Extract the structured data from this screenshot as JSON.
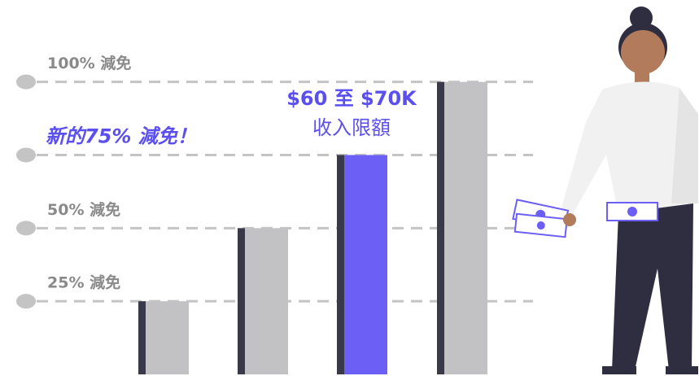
{
  "chart_data": {
    "type": "bar",
    "categories": [
      null,
      null,
      null,
      null
    ],
    "values": [
      25,
      50,
      75,
      100
    ],
    "colors": [
      "#c2c2c4",
      "#c2c2c4",
      "#6c5ff5",
      "#c2c2c4"
    ],
    "edge_color": "#3a3949",
    "ylim": [
      0,
      128
    ],
    "yticks": [
      {
        "value": 25,
        "label": "25% 減免"
      },
      {
        "value": 50,
        "label": "50% 減免"
      },
      {
        "value": 75,
        "label": "新的75% 減免！"
      },
      {
        "value": 100,
        "label": "100% 減免"
      }
    ],
    "grid": true,
    "annotation": [
      "$60 至 $70K",
      "收入限額"
    ]
  }
}
